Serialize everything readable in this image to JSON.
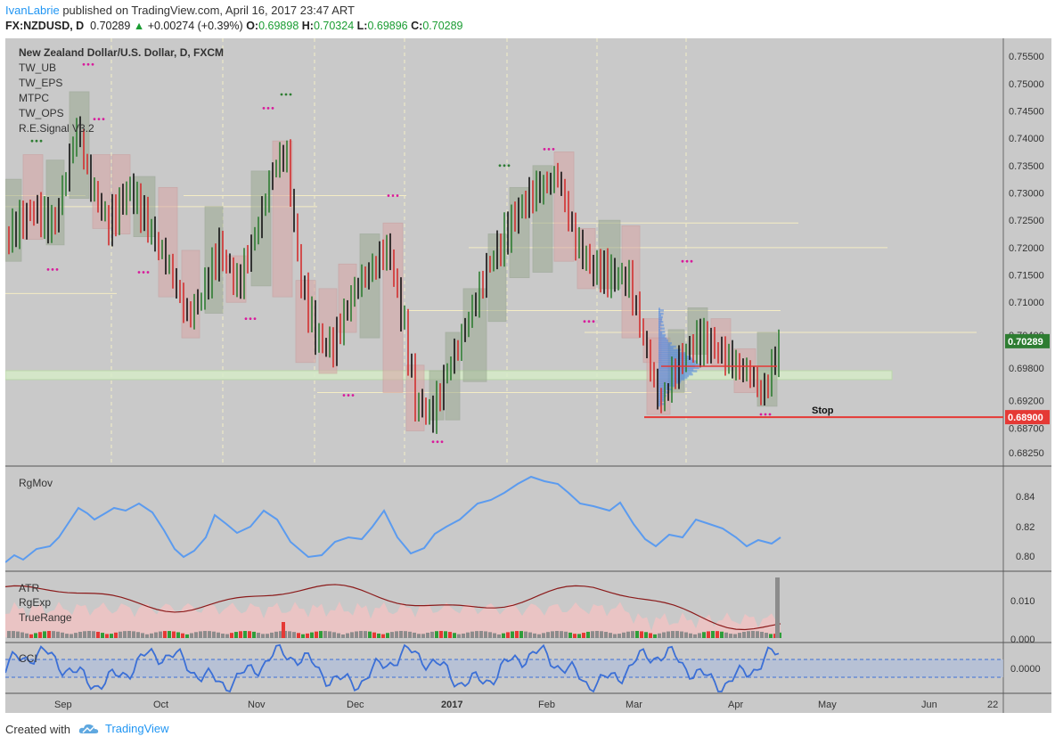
{
  "header": {
    "user": "IvanLabrie",
    "published_text": " published on TradingView.com, April 16, 2017 23:47 ART",
    "symbol": "FX:NZDUSD, D",
    "last": "0.70289",
    "change": "+0.00274 (+0.39%)",
    "o_label": "O:",
    "o": "0.69898",
    "h_label": "H:",
    "h": "0.70324",
    "l_label": "L:",
    "l": "0.69896",
    "c_label": "C:",
    "c": "0.70289"
  },
  "main_legend": [
    "New Zealand Dollar/U.S. Dollar, D, FXCM",
    "TW_UB",
    "TW_EPS",
    "MTPC",
    "TW_OPS",
    "R.E.Signal V3.2"
  ],
  "price_axis": {
    "ticks": [
      "0.75500",
      "0.75000",
      "0.74500",
      "0.74000",
      "0.73500",
      "0.73000",
      "0.72500",
      "0.72000",
      "0.71500",
      "0.71000",
      "0.70400",
      "0.69800",
      "0.69200",
      "0.68700",
      "0.68250"
    ],
    "last_price_label": "0.70289",
    "stop_label": "0.68900"
  },
  "annotation": {
    "stop_text": "Stop"
  },
  "time_axis": [
    "Sep",
    "Oct",
    "Nov",
    "Dec",
    "2017",
    "Feb",
    "Mar",
    "Apr",
    "May",
    "Jun",
    "22"
  ],
  "panes": {
    "rgmov": {
      "label": "RgMov",
      "ticks": [
        "0.84",
        "0.82",
        "0.80"
      ]
    },
    "atr": {
      "labels": [
        "ATR",
        "RgExp",
        "TrueRange"
      ],
      "ticks": [
        "0.010",
        "0.000"
      ]
    },
    "cci": {
      "label": "CCI",
      "ticks": [
        "0.0000"
      ]
    }
  },
  "chart_data": {
    "type": "line",
    "title": "New Zealand Dollar/U.S. Dollar, D, FXCM",
    "last_close": 0.70289,
    "stop_level": 0.689,
    "ylim": [
      0.679,
      0.758
    ],
    "approx_closes": [
      {
        "x": "Sep",
        "y": 0.728
      },
      {
        "x": "Oct",
        "y": 0.716
      },
      {
        "x": "Nov",
        "y": 0.732
      },
      {
        "x": "Dec",
        "y": 0.703
      },
      {
        "x": "2017",
        "y": 0.693
      },
      {
        "x": "Feb",
        "y": 0.733
      },
      {
        "x": "Mar",
        "y": 0.707
      },
      {
        "x": "Apr",
        "y": 0.697
      },
      {
        "x": "Apr 16",
        "y": 0.70289
      }
    ]
  },
  "colors": {
    "up": "#2e7d32",
    "down": "#d32f2f",
    "stop": "#e53935",
    "cci": "#3b6fd6",
    "rgmov": "#5b9bef",
    "pane_bg": "#c9c9c9"
  },
  "footer": {
    "created_with": "Created with",
    "brand": "TradingView"
  }
}
